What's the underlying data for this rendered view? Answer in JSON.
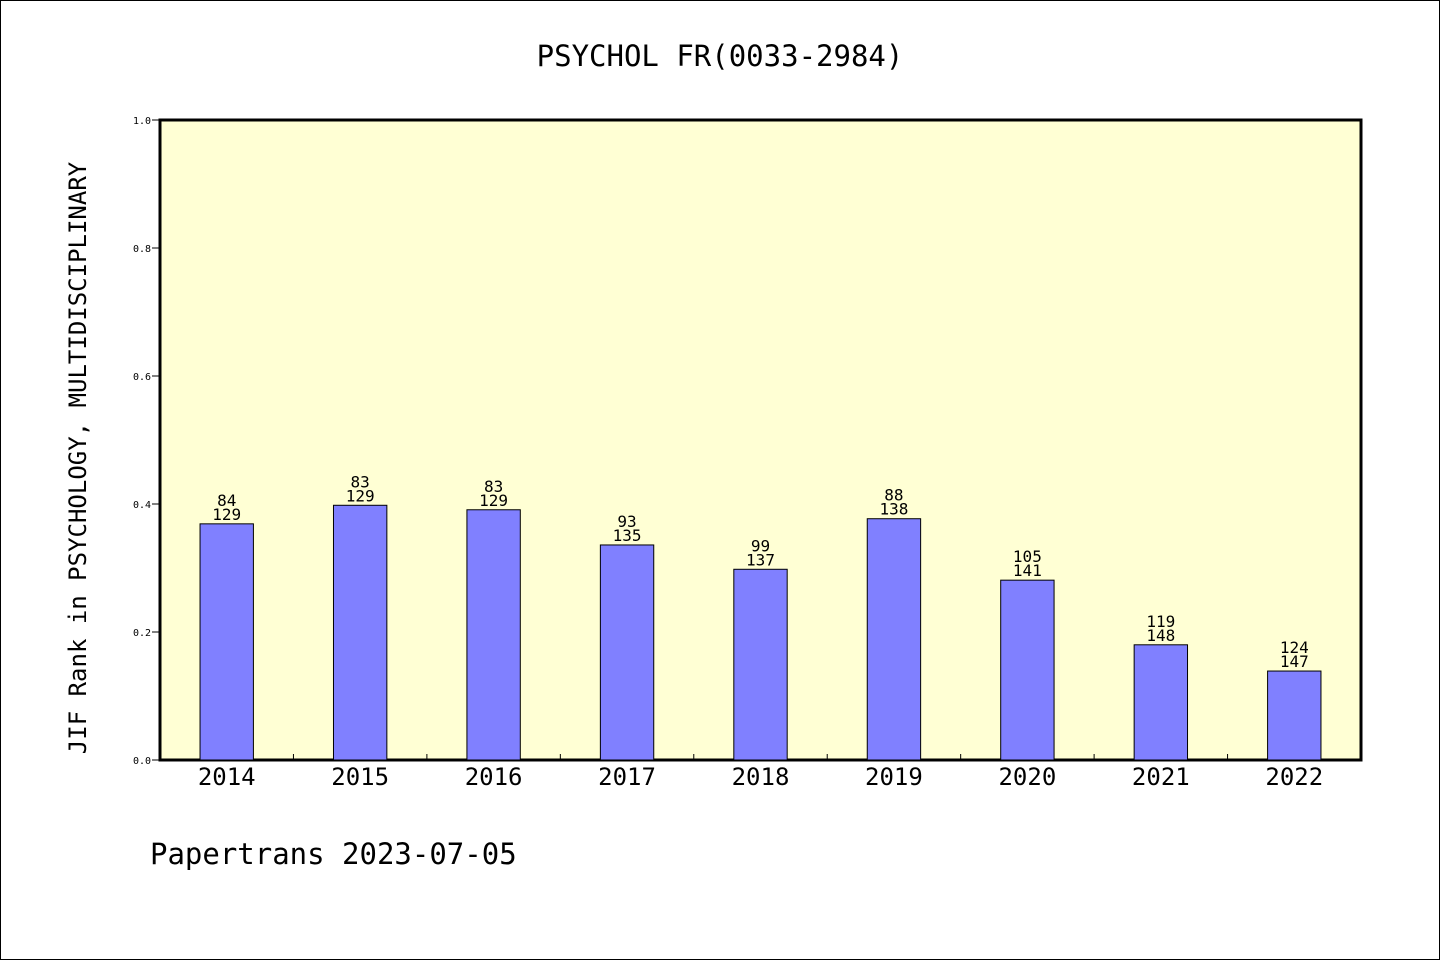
{
  "chart_data": {
    "type": "bar",
    "title": "PSYCHOL FR(0033-2984)",
    "xlabel": "",
    "ylabel": "JIF Rank in PSYCHOLOGY, MULTIDISCIPLINARY",
    "ylim": [
      0,
      1.0
    ],
    "yticks": [
      "0.0",
      "0.2",
      "0.4",
      "0.6",
      "0.8",
      "1.0"
    ],
    "categories": [
      "2014",
      "2015",
      "2016",
      "2017",
      "2018",
      "2019",
      "2020",
      "2021",
      "2022"
    ],
    "values": [
      0.369,
      0.398,
      0.391,
      0.336,
      0.298,
      0.377,
      0.281,
      0.18,
      0.139
    ],
    "rank_labels": [
      "84",
      "83",
      "83",
      "93",
      "99",
      "88",
      "105",
      "119",
      "124"
    ],
    "total_labels": [
      "129",
      "129",
      "129",
      "135",
      "137",
      "138",
      "141",
      "148",
      "147"
    ],
    "grid": false,
    "colors": {
      "bar": "#8080ff",
      "plot_bg": "#ffffd4"
    }
  },
  "footer": "Papertrans 2023-07-05"
}
